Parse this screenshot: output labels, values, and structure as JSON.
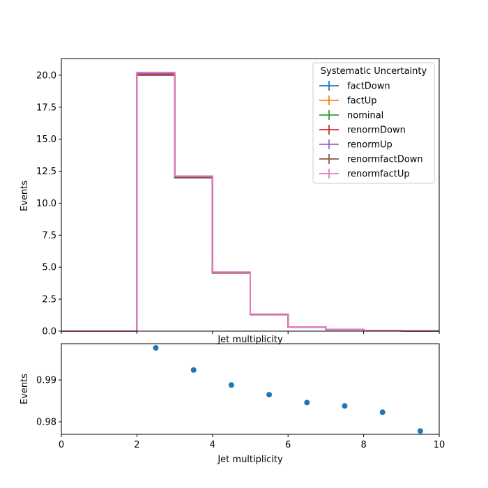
{
  "chart_data": [
    {
      "type": "histogram",
      "xlabel": "Jet multiplicity",
      "ylabel": "Events",
      "xlim": [
        0,
        10
      ],
      "ylim": [
        0,
        21.3
      ],
      "xticks": [
        "0",
        "2",
        "4",
        "6",
        "8",
        "10"
      ],
      "yticks": [
        "0.0",
        "2.5",
        "5.0",
        "7.5",
        "10.0",
        "12.5",
        "15.0",
        "17.5",
        "20.0"
      ],
      "bin_edges": [
        0,
        1,
        2,
        3,
        4,
        5,
        6,
        7,
        8,
        9,
        10
      ],
      "legend": {
        "title": "Systematic Uncertainty",
        "placement": "top-right"
      },
      "series": [
        {
          "name": "factDown",
          "color": "#1f77b4",
          "values": [
            0,
            0,
            20.05,
            12.0,
            4.55,
            1.3,
            0.32,
            0.13,
            0.05,
            0.02
          ]
        },
        {
          "name": "factUp",
          "color": "#ff7f0e",
          "values": [
            0,
            0,
            20.1,
            12.05,
            4.58,
            1.31,
            0.33,
            0.13,
            0.05,
            0.02
          ]
        },
        {
          "name": "nominal",
          "color": "#2ca02c",
          "values": [
            0,
            0,
            20.1,
            12.05,
            4.58,
            1.31,
            0.33,
            0.13,
            0.05,
            0.02
          ]
        },
        {
          "name": "renormDown",
          "color": "#d62728",
          "values": [
            0,
            0,
            20.05,
            12.0,
            4.55,
            1.3,
            0.32,
            0.13,
            0.05,
            0.02
          ]
        },
        {
          "name": "renormUp",
          "color": "#9467bd",
          "values": [
            0,
            0,
            20.15,
            12.08,
            4.6,
            1.32,
            0.33,
            0.13,
            0.05,
            0.02
          ]
        },
        {
          "name": "renormfactDown",
          "color": "#8c564b",
          "values": [
            0,
            0,
            20.0,
            11.98,
            4.54,
            1.29,
            0.32,
            0.13,
            0.05,
            0.02
          ]
        },
        {
          "name": "renormfactUp",
          "color": "#e377c2",
          "values": [
            0,
            0,
            20.22,
            12.12,
            4.62,
            1.32,
            0.33,
            0.13,
            0.05,
            0.02
          ]
        }
      ]
    },
    {
      "type": "scatter",
      "xlabel": "Jet multiplicity",
      "ylabel": "Events",
      "xlim": [
        0,
        10
      ],
      "ylim": [
        0.977,
        0.9987
      ],
      "xticks": [
        "0",
        "2",
        "4",
        "6",
        "8",
        "10"
      ],
      "yticks": [
        "0.98",
        "0.99"
      ],
      "ytick_values": [
        0.98,
        0.99
      ],
      "color": "#1f77b4",
      "x": [
        2.5,
        3.5,
        4.5,
        5.5,
        6.5,
        7.5,
        8.5,
        9.5
      ],
      "y": [
        0.9977,
        0.9924,
        0.9888,
        0.9865,
        0.9846,
        0.9838,
        0.9823,
        0.9778
      ]
    }
  ]
}
